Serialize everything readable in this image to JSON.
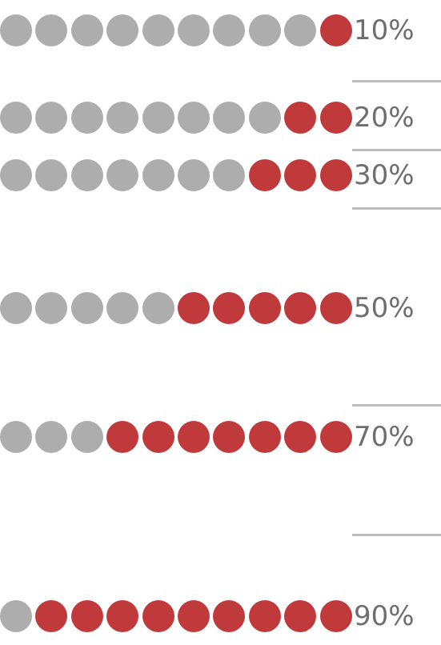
{
  "chart_data": {
    "type": "pictograph",
    "total_dots": 10,
    "rows": [
      {
        "label": "10%",
        "value": 10
      },
      {
        "label": "20%",
        "value": 20
      },
      {
        "label": "30%",
        "value": 30
      },
      {
        "label": "50%",
        "value": 50
      },
      {
        "label": "70%",
        "value": 70
      },
      {
        "label": "90%",
        "value": 90
      }
    ],
    "colors": {
      "filled": "#c0393b",
      "empty": "#adadad",
      "label": "#6e6e6e",
      "divider": "#bdbdbd"
    }
  }
}
